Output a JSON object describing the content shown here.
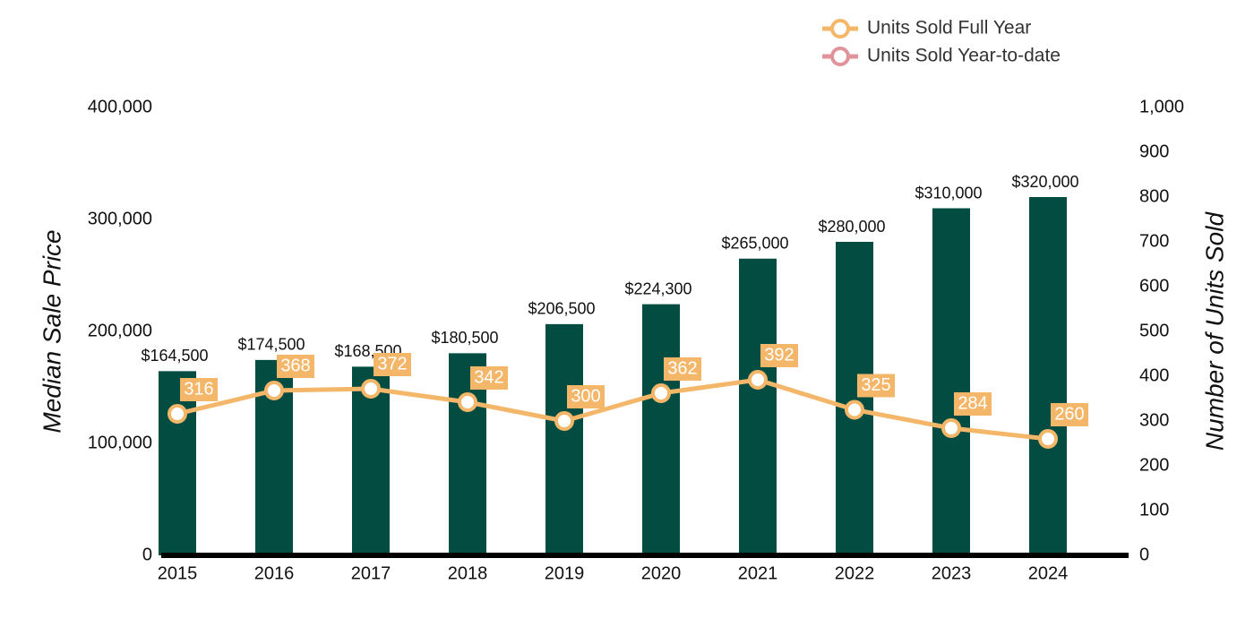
{
  "chart_data": {
    "type": "bar",
    "categories": [
      "2015",
      "2016",
      "2017",
      "2018",
      "2019",
      "2020",
      "2021",
      "2022",
      "2023",
      "2024"
    ],
    "y_label": "Median Sale Price",
    "y2_label": "Number of Units Sold",
    "ylim": [
      0,
      400000
    ],
    "yticks": [
      0,
      {
        "value": 100000,
        "label": "100,000"
      },
      {
        "value": 200000,
        "label": "200,000"
      },
      {
        "value": 300000,
        "label": "300,000"
      },
      {
        "value": 400000,
        "label": "400,000"
      }
    ],
    "y2lim": [
      0,
      1000
    ],
    "y2ticks": [
      0,
      100,
      200,
      300,
      400,
      500,
      600,
      700,
      800,
      900,
      {
        "value": 1000,
        "label": "1,000"
      }
    ],
    "series": [
      {
        "type": "bar",
        "color": "#034c42",
        "values": [
          164500,
          174500,
          168500,
          180500,
          206500,
          224300,
          265000,
          280000,
          310000,
          320000
        ],
        "value_labels": [
          "$164,500",
          "$174,500",
          "$168,500",
          "$180,500",
          "$206,500",
          "$224,300",
          "$265,000",
          "$280,000",
          "$310,000",
          "$320,000"
        ]
      },
      {
        "type": "line",
        "name": "Units Sold Full Year",
        "axis": "y2",
        "color": "#f4b76a",
        "values": [
          316,
          368,
          372,
          342,
          300,
          362,
          392,
          325,
          284,
          260
        ]
      },
      {
        "type": "line",
        "name": "Units Sold Year-to-date",
        "axis": "y2",
        "color": "#e0939a",
        "values": [
          null,
          null,
          null,
          null,
          null,
          null,
          null,
          null,
          null,
          null
        ]
      }
    ]
  }
}
